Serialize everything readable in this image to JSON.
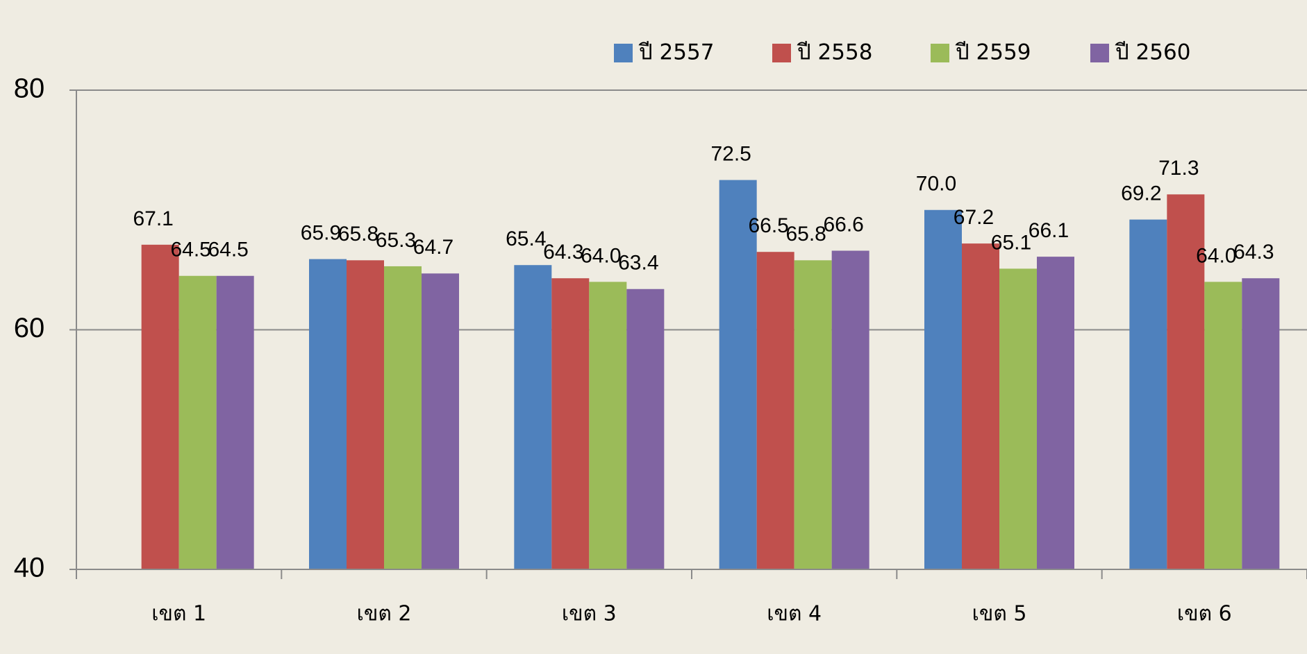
{
  "chart_data": {
    "type": "bar",
    "categories": [
      "เขต 1",
      "เขต 2",
      "เขต 3",
      "เขต 4",
      "เขต 5",
      "เขต 6"
    ],
    "series": [
      {
        "name": "ปี 2557",
        "color": "#4f81bd",
        "values": [
          null,
          65.9,
          65.4,
          72.5,
          70.0,
          69.2
        ],
        "value_labels": [
          null,
          "65.9",
          "65.4",
          "72.5",
          "70.0",
          "69.2"
        ]
      },
      {
        "name": "ปี 2558",
        "color": "#c0504d",
        "values": [
          67.1,
          65.8,
          64.3,
          66.5,
          67.2,
          71.3
        ],
        "value_labels": [
          "67.1",
          "65.8",
          "64.3",
          "66.5",
          "67.2",
          "71.3"
        ]
      },
      {
        "name": "ปี 2559",
        "color": "#9bbb59",
        "values": [
          64.5,
          65.3,
          64.0,
          65.8,
          65.1,
          64.0
        ],
        "value_labels": [
          "64.5",
          "65.3",
          "64.0",
          "65.8",
          "65.1",
          "64.0"
        ]
      },
      {
        "name": "ปี 2560",
        "color": "#8064a2",
        "values": [
          64.5,
          64.7,
          63.4,
          66.6,
          66.1,
          64.3
        ],
        "value_labels": [
          "64.5",
          "64.7",
          "63.4",
          "66.6",
          "66.1",
          "64.3"
        ]
      }
    ],
    "ylim": [
      40,
      80
    ],
    "yticks": [
      40,
      60,
      80
    ],
    "grid": true,
    "legend": "top"
  }
}
